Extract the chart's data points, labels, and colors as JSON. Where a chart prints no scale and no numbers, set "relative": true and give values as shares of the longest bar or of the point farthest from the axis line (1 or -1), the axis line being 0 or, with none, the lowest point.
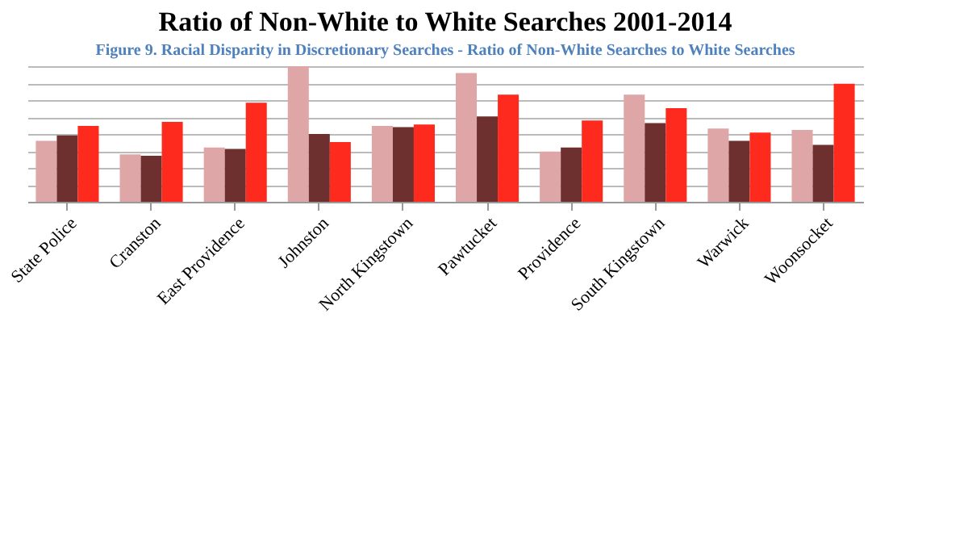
{
  "chart_data": {
    "type": "bar",
    "title": "Ratio of Non-White to White Searches 2001-2014",
    "relative": true,
    "grid": "y",
    "categories": [
      "State Police",
      "Cranston",
      "East Providence",
      "Johnston",
      "North Kingstown",
      "Pawtucket",
      "Providence",
      "South Kingstown",
      "Warwick",
      "Woonsocket"
    ],
    "series": [
      {
        "color": "#dea6a6",
        "values": [
          0.45,
          0.35,
          0.4,
          1.0,
          0.56,
          0.95,
          0.37,
          0.79,
          0.54,
          0.53
        ]
      },
      {
        "color": "#6e302e",
        "values": [
          0.49,
          0.34,
          0.39,
          0.5,
          0.55,
          0.63,
          0.4,
          0.58,
          0.45,
          0.42
        ]
      },
      {
        "color": "#ff2a1e",
        "values": [
          0.56,
          0.59,
          0.73,
          0.44,
          0.57,
          0.79,
          0.6,
          0.69,
          0.51,
          0.87
        ]
      }
    ],
    "annotations": [
      "Figure 9. Racial Disparity in Discretionary Searches - Ratio of Non-White Searches to White Searches"
    ]
  }
}
